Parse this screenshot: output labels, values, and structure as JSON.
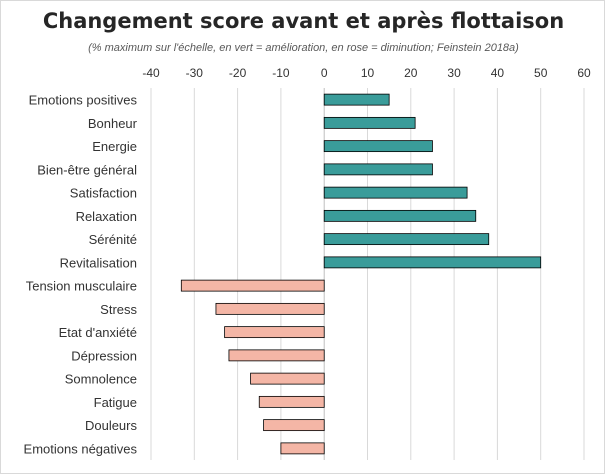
{
  "chart_data": {
    "type": "bar",
    "orientation": "horizontal",
    "title": "Changement score avant et après flottaison",
    "subtitle": "(% maximum sur l'échelle, en vert = amélioration, en rose = diminution; Feinstein  2018a)",
    "categories": [
      "Emotions positives",
      "Bonheur",
      "Energie",
      "Bien-être général",
      "Satisfaction",
      "Relaxation",
      "Sérénité",
      "Revitalisation",
      "Tension musculaire",
      "Stress",
      "Etat d'anxiété",
      "Dépression",
      "Somnolence",
      "Fatigue",
      "Douleurs",
      "Emotions négatives"
    ],
    "values": [
      15,
      21,
      25,
      25,
      33,
      35,
      38,
      50,
      -33,
      -25,
      -23,
      -22,
      -17,
      -15,
      -14,
      -10
    ],
    "xlim": [
      -40,
      60
    ],
    "xticks": [
      -40,
      -30,
      -20,
      -10,
      0,
      10,
      20,
      30,
      40,
      50,
      60
    ],
    "xaxis_position": "top",
    "grid": true,
    "legend": "none",
    "colors": {
      "positive": "#3a9c9a",
      "negative": "#f4b6a6",
      "bar_border": "#000000",
      "grid": "#d9d9d9",
      "zero_axis": "#bfbfbf"
    }
  }
}
